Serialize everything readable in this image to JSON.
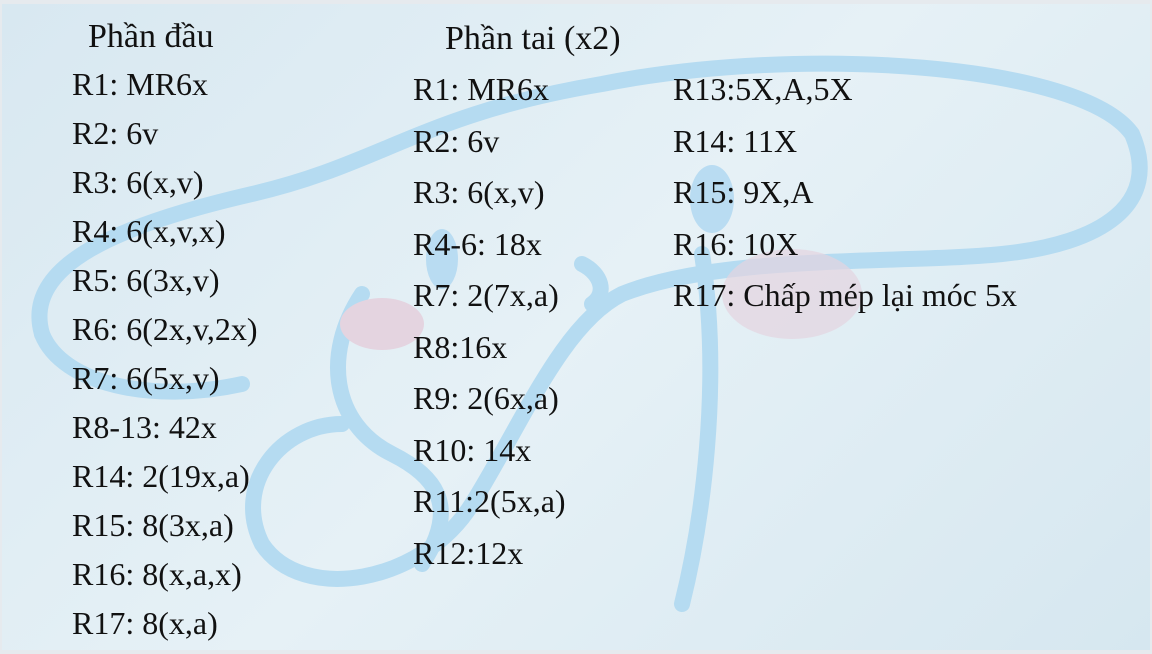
{
  "colors": {
    "background": "#dceaf2",
    "outline": "#b5dbf1",
    "blush": "#e7d3df",
    "text": "#111111"
  },
  "head": {
    "title": "Phần đầu",
    "rows": [
      "R1: MR6x",
      "R2: 6v",
      "R3: 6(x,v)",
      "R4: 6(x,v,x)",
      "R5: 6(3x,v)",
      "R6: 6(2x,v,2x)",
      "R7: 6(5x,v)",
      "R8-13: 42x",
      "R14: 2(19x,a)",
      "R15: 8(3x,a)",
      "R16: 8(x,a,x)",
      "R17: 8(x,a)"
    ]
  },
  "ear": {
    "title": "Phần tai (x2)",
    "rows_left": [
      "R1: MR6x",
      "R2: 6v",
      "R3: 6(x,v)",
      "R4-6: 18x",
      "R7: 2(7x,a)",
      "R8:16x",
      "R9: 2(6x,a)",
      "R10: 14x",
      "R11:2(5x,a)",
      "R12:12x"
    ],
    "rows_right": [
      "R13:5X,A,5X",
      "R14: 11X",
      "R15: 9X,A",
      "R16: 10X",
      "R17: Chấp mép lại móc 5x"
    ]
  }
}
